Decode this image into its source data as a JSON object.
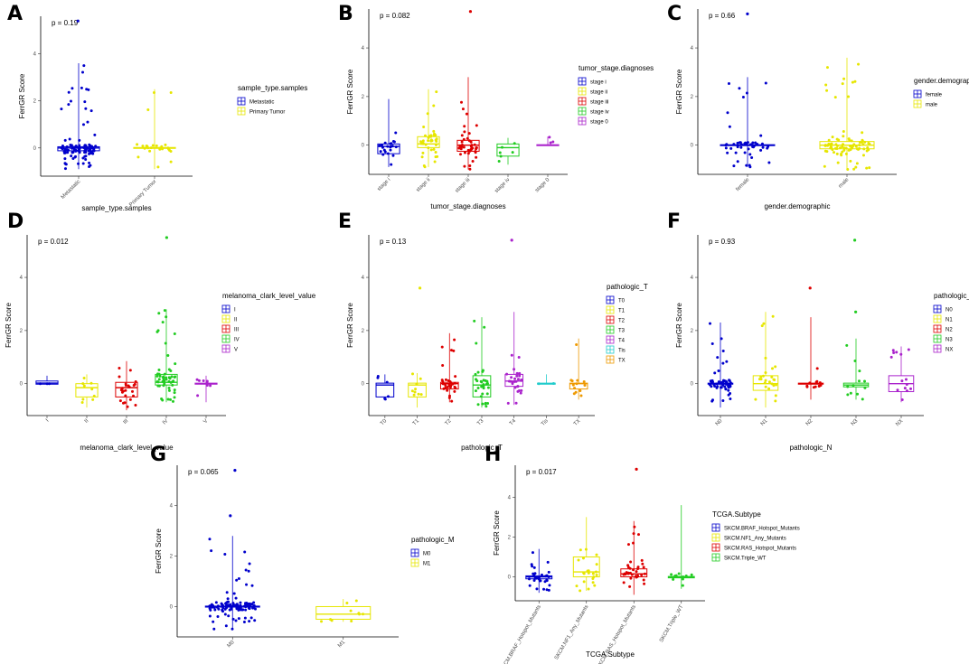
{
  "figure": {
    "background": "#ffffff"
  },
  "chart_data": [
    {
      "panel": "A",
      "type": "box-jitter",
      "pvalue": "p = 0.19",
      "xlabel": "sample_type.samples",
      "ylabel": "FerrGR Score",
      "ylim": [
        -1.2,
        5.6
      ],
      "yticks": [
        "0",
        "2",
        "4"
      ],
      "legend": {
        "title": "sample_type.samples",
        "position": "right"
      },
      "groups": [
        {
          "name": "Metastatic",
          "color": "#0000cc",
          "q1": -0.12,
          "median": 0.0,
          "q3": 0.05,
          "lower": -0.9,
          "upper": 3.6,
          "n": 110
        },
        {
          "name": "Primary Tumor",
          "color": "#e6e600",
          "q1": -0.02,
          "median": 0.0,
          "q3": 0.02,
          "lower": -0.9,
          "upper": 2.5,
          "n": 25
        }
      ],
      "outliers": [
        {
          "group": "Metastatic",
          "y": 5.4
        }
      ]
    },
    {
      "panel": "B",
      "type": "box-jitter",
      "pvalue": "p = 0.082",
      "xlabel": "tumor_stage.diagnoses",
      "ylabel": "FerrGR Score",
      "ylim": [
        -1.2,
        5.6
      ],
      "yticks": [
        "0",
        "2",
        "4"
      ],
      "legend": {
        "title": "tumor_stage.diagnoses",
        "position": "right"
      },
      "groups": [
        {
          "name": "stage i",
          "tick": "stage i",
          "color": "#0000cc",
          "q1": -0.35,
          "median": -0.05,
          "q3": 0.05,
          "lower": -0.9,
          "upper": 1.9,
          "n": 22
        },
        {
          "name": "stage ii",
          "tick": "stage ii",
          "color": "#e6e600",
          "q1": -0.1,
          "median": 0.05,
          "q3": 0.35,
          "lower": -0.9,
          "upper": 2.3,
          "n": 40
        },
        {
          "name": "stage iii",
          "tick": "stage iii",
          "color": "#dd0000",
          "q1": -0.25,
          "median": 0.0,
          "q3": 0.2,
          "lower": -1.0,
          "upper": 2.8,
          "n": 42
        },
        {
          "name": "stage iv",
          "tick": "stage iv",
          "color": "#22cc22",
          "q1": -0.45,
          "median": -0.1,
          "q3": 0.05,
          "lower": -0.8,
          "upper": 0.3,
          "n": 6
        },
        {
          "name": "stage 0",
          "tick": "stage 0",
          "color": "#aa22cc",
          "q1": -0.02,
          "median": 0.0,
          "q3": 0.02,
          "lower": 0.0,
          "upper": 0.35,
          "n": 3
        }
      ],
      "outliers": [
        {
          "group": "stage iii",
          "y": 5.5
        }
      ]
    },
    {
      "panel": "C",
      "type": "box-jitter",
      "pvalue": "p = 0.66",
      "xlabel": "gender.demographic",
      "ylabel": "FerrGR Score",
      "ylim": [
        -1.2,
        5.6
      ],
      "yticks": [
        "0",
        "2",
        "4"
      ],
      "legend": {
        "title": "gender.demographic",
        "position": "right"
      },
      "groups": [
        {
          "name": "female",
          "color": "#0000cc",
          "q1": -0.02,
          "median": 0.0,
          "q3": 0.02,
          "lower": -0.9,
          "upper": 2.8,
          "n": 50
        },
        {
          "name": "male",
          "color": "#e6e600",
          "q1": -0.15,
          "median": 0.0,
          "q3": 0.15,
          "lower": -1.0,
          "upper": 3.6,
          "n": 85
        }
      ],
      "outliers": [
        {
          "group": "female",
          "y": 5.4
        }
      ]
    },
    {
      "panel": "D",
      "type": "box-jitter",
      "pvalue": "p = 0.012",
      "xlabel": "melanoma_clark_level_value",
      "ylabel": "FerrGR Score",
      "ylim": [
        -1.2,
        5.6
      ],
      "yticks": [
        "0",
        "2",
        "4"
      ],
      "legend": {
        "title": "melanoma_clark_level_value",
        "position": "right"
      },
      "groups": [
        {
          "name": "I",
          "color": "#0000cc",
          "q1": -0.02,
          "median": 0.02,
          "q3": 0.1,
          "lower": 0.0,
          "upper": 0.3,
          "n": 3
        },
        {
          "name": "II",
          "color": "#e6e600",
          "q1": -0.5,
          "median": -0.15,
          "q3": 0.0,
          "lower": -0.9,
          "upper": 0.35,
          "n": 9
        },
        {
          "name": "III",
          "color": "#dd0000",
          "q1": -0.5,
          "median": -0.15,
          "q3": 0.05,
          "lower": -1.0,
          "upper": 0.85,
          "n": 25
        },
        {
          "name": "IV",
          "color": "#22cc22",
          "q1": -0.05,
          "median": 0.05,
          "q3": 0.35,
          "lower": -0.7,
          "upper": 2.8,
          "n": 55
        },
        {
          "name": "V",
          "color": "#aa22cc",
          "q1": -0.02,
          "median": 0.0,
          "q3": 0.02,
          "lower": -0.7,
          "upper": 0.3,
          "n": 8
        }
      ],
      "outliers": [
        {
          "group": "IV",
          "y": 5.5
        }
      ]
    },
    {
      "panel": "E",
      "type": "box-jitter",
      "pvalue": "p = 0.13",
      "xlabel": "pathologic_T",
      "ylabel": "FerrGR Score",
      "ylim": [
        -1.2,
        5.6
      ],
      "yticks": [
        "0",
        "2",
        "4"
      ],
      "legend": {
        "title": "pathologic_T",
        "position": "right"
      },
      "groups": [
        {
          "name": "T0",
          "color": "#0000cc",
          "q1": -0.5,
          "median": -0.05,
          "q3": 0.02,
          "lower": -0.6,
          "upper": 0.35,
          "n": 6
        },
        {
          "name": "T1",
          "color": "#e6e600",
          "q1": -0.5,
          "median": -0.05,
          "q3": 0.02,
          "lower": -0.9,
          "upper": 0.4,
          "n": 9
        },
        {
          "name": "T2",
          "color": "#dd0000",
          "q1": -0.2,
          "median": 0.0,
          "q3": 0.05,
          "lower": -0.7,
          "upper": 1.9,
          "n": 30
        },
        {
          "name": "T3",
          "color": "#22cc22",
          "q1": -0.5,
          "median": -0.05,
          "q3": 0.3,
          "lower": -0.9,
          "upper": 2.5,
          "n": 32
        },
        {
          "name": "T4",
          "color": "#aa22cc",
          "q1": -0.1,
          "median": 0.1,
          "q3": 0.35,
          "lower": -0.8,
          "upper": 2.7,
          "n": 28
        },
        {
          "name": "Tis",
          "color": "#22cccc",
          "q1": -0.02,
          "median": 0.0,
          "q3": 0.02,
          "lower": 0.0,
          "upper": 0.35,
          "n": 2
        },
        {
          "name": "TX",
          "color": "#ee9900",
          "q1": -0.2,
          "median": 0.0,
          "q3": 0.02,
          "lower": -0.6,
          "upper": 1.7,
          "n": 13
        }
      ],
      "outliers": [
        {
          "group": "T1",
          "y": 3.6
        },
        {
          "group": "T4",
          "y": 5.4
        }
      ]
    },
    {
      "panel": "F",
      "type": "box-jitter",
      "pvalue": "p = 0.93",
      "xlabel": "pathologic_N",
      "ylabel": "FerrGR Score",
      "ylim": [
        -1.2,
        5.6
      ],
      "yticks": [
        "0",
        "2",
        "4"
      ],
      "legend": {
        "title": "pathologic_N",
        "position": "right"
      },
      "groups": [
        {
          "name": "N0",
          "color": "#0000cc",
          "q1": -0.02,
          "median": 0.0,
          "q3": 0.02,
          "lower": -0.9,
          "upper": 2.3,
          "n": 55
        },
        {
          "name": "N1",
          "color": "#e6e600",
          "q1": -0.25,
          "median": 0.0,
          "q3": 0.3,
          "lower": -0.9,
          "upper": 2.7,
          "n": 25
        },
        {
          "name": "N2",
          "color": "#dd0000",
          "q1": -0.02,
          "median": 0.0,
          "q3": 0.02,
          "lower": -0.6,
          "upper": 2.5,
          "n": 12
        },
        {
          "name": "N3",
          "color": "#22cc22",
          "q1": -0.12,
          "median": -0.05,
          "q3": 0.02,
          "lower": -0.6,
          "upper": 1.7,
          "n": 12
        },
        {
          "name": "NX",
          "color": "#aa22cc",
          "q1": -0.3,
          "median": 0.0,
          "q3": 0.3,
          "lower": -0.7,
          "upper": 1.4,
          "n": 14
        }
      ],
      "outliers": [
        {
          "group": "N2",
          "y": 3.6
        },
        {
          "group": "N3",
          "y": 5.4
        },
        {
          "group": "N3",
          "y": 2.7
        }
      ]
    },
    {
      "panel": "G",
      "type": "box-jitter",
      "pvalue": "p = 0.065",
      "xlabel": "pathologic_M",
      "ylabel": "FerrGR Score",
      "ylim": [
        -1.2,
        5.6
      ],
      "yticks": [
        "0",
        "2",
        "4"
      ],
      "legend": {
        "title": "pathologic_M",
        "position": "right"
      },
      "groups": [
        {
          "name": "M0",
          "color": "#0000cc",
          "q1": -0.02,
          "median": 0.0,
          "q3": 0.02,
          "lower": -0.9,
          "upper": 2.8,
          "n": 110
        },
        {
          "name": "M1",
          "color": "#e6e600",
          "q1": -0.5,
          "median": -0.3,
          "q3": 0.0,
          "lower": -0.6,
          "upper": 0.3,
          "n": 10
        }
      ],
      "outliers": [
        {
          "group": "M0",
          "y": 3.6
        },
        {
          "group": "M0",
          "y": 5.4
        }
      ]
    },
    {
      "panel": "H",
      "type": "box-jitter",
      "pvalue": "p = 0.017",
      "xlabel": "TCGA.Subtype",
      "ylabel": "FerrGR Score",
      "ylim": [
        -1.2,
        5.6
      ],
      "yticks": [
        "0",
        "2",
        "4"
      ],
      "legend": {
        "title": "TCGA.Subtype",
        "position": "right"
      },
      "groups": [
        {
          "name": "SKCM.BRAF_Hotspot_Mutants",
          "tick": "SKCM.BRAF_Hotspot_Mutants",
          "color": "#0000cc",
          "q1": -0.1,
          "median": 0.0,
          "q3": 0.05,
          "lower": -0.8,
          "upper": 1.4,
          "n": 30
        },
        {
          "name": "SKCM.NF1_Any_Mutants",
          "tick": "SKCM.NF1_Any_Mutants",
          "color": "#e6e600",
          "q1": 0.0,
          "median": 0.25,
          "q3": 1.0,
          "lower": -0.7,
          "upper": 3.0,
          "n": 22
        },
        {
          "name": "SKCM.RAS_Hotspot_Mutants",
          "tick": "SKCM.RAS_Hotspot_Mutants",
          "color": "#dd0000",
          "q1": 0.0,
          "median": 0.15,
          "q3": 0.4,
          "lower": -0.9,
          "upper": 2.8,
          "n": 35
        },
        {
          "name": "SKCM.Triple_WT",
          "tick": "SKCM.Triple_WT",
          "color": "#22cc22",
          "q1": -0.05,
          "median": -0.02,
          "q3": 0.02,
          "lower": -0.6,
          "upper": 3.6,
          "n": 10
        }
      ],
      "outliers": [
        {
          "group": "SKCM.RAS_Hotspot_Mutants",
          "y": 5.4
        }
      ]
    }
  ]
}
